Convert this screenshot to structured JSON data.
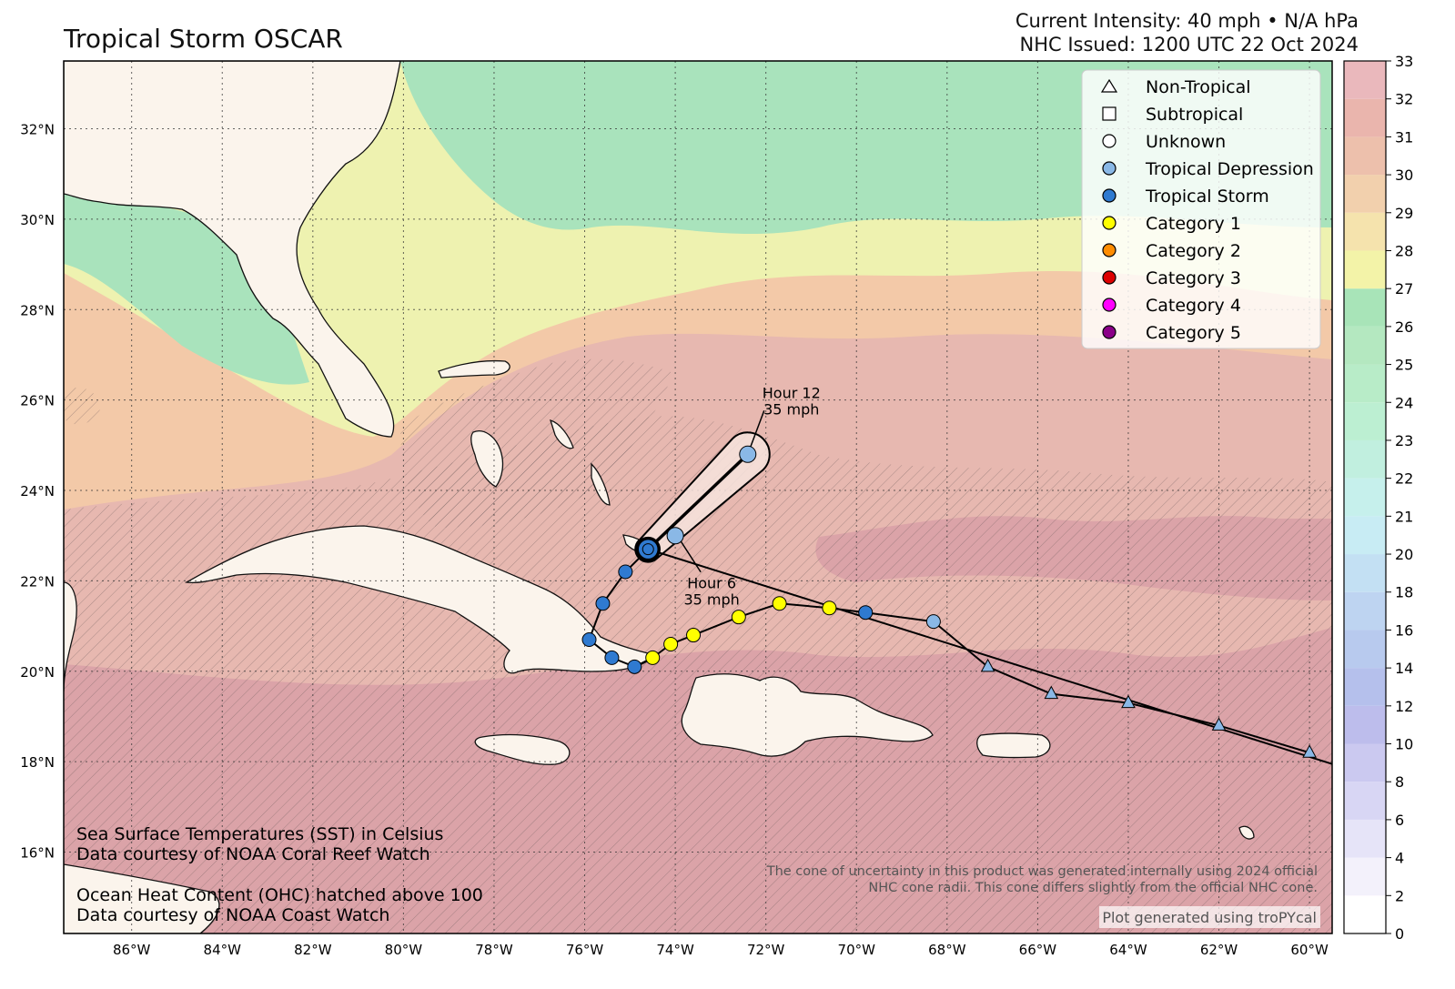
{
  "header": {
    "title": "Tropical Storm OSCAR",
    "intensity": "Current Intensity: 40 mph • N/A hPa",
    "issued": "NHC Issued: 1200 UTC 22 Oct 2024"
  },
  "map": {
    "lon_range": [
      -87.5,
      -59.5
    ],
    "lat_range": [
      14.2,
      33.5
    ],
    "lon_ticks": [
      "86°W",
      "84°W",
      "82°W",
      "80°W",
      "78°W",
      "76°W",
      "74°W",
      "72°W",
      "70°W",
      "68°W",
      "66°W",
      "64°W",
      "62°W",
      "60°W"
    ],
    "lat_ticks": [
      "32°N",
      "30°N",
      "28°N",
      "26°N",
      "24°N",
      "22°N",
      "20°N",
      "18°N",
      "16°N"
    ],
    "colors": {
      "land": "#fbf4ec",
      "sst_warm": "#e7b8b0",
      "sst_hot": "#dba3a8",
      "sst_mid": "#f3c9a8",
      "sst_cool": "#eef2b0",
      "sst_cold": "#a9e3bc",
      "track": "#000000"
    }
  },
  "legend": {
    "items": [
      {
        "label": "Non-Tropical",
        "marker": "triangle",
        "color": "#ffffff"
      },
      {
        "label": "Subtropical",
        "marker": "square",
        "color": "#ffffff"
      },
      {
        "label": "Unknown",
        "marker": "circle",
        "color": "#ffffff"
      },
      {
        "label": "Tropical Depression",
        "marker": "circle",
        "color": "#8ab8e6"
      },
      {
        "label": "Tropical Storm",
        "marker": "circle",
        "color": "#2f7ad0"
      },
      {
        "label": "Category 1",
        "marker": "circle",
        "color": "#ffff00"
      },
      {
        "label": "Category 2",
        "marker": "circle",
        "color": "#ff8c00"
      },
      {
        "label": "Category 3",
        "marker": "circle",
        "color": "#dd0000"
      },
      {
        "label": "Category 4",
        "marker": "circle",
        "color": "#ff00ff"
      },
      {
        "label": "Category 5",
        "marker": "circle",
        "color": "#8b0088"
      }
    ]
  },
  "track": {
    "past": [
      {
        "lon": -60.0,
        "lat": 18.2,
        "type": "Non-Tropical"
      },
      {
        "lon": -62.0,
        "lat": 18.8,
        "type": "Non-Tropical"
      },
      {
        "lon": -64.0,
        "lat": 19.3,
        "type": "Non-Tropical"
      },
      {
        "lon": -65.7,
        "lat": 19.5,
        "type": "Non-Tropical"
      },
      {
        "lon": -67.1,
        "lat": 20.1,
        "type": "Non-Tropical"
      },
      {
        "lon": -68.3,
        "lat": 21.1,
        "type": "Tropical Depression"
      },
      {
        "lon": -69.8,
        "lat": 21.3,
        "type": "Tropical Storm"
      },
      {
        "lon": -70.6,
        "lat": 21.4,
        "type": "Category 1"
      },
      {
        "lon": -71.7,
        "lat": 21.5,
        "type": "Category 1"
      },
      {
        "lon": -72.6,
        "lat": 21.2,
        "type": "Category 1"
      },
      {
        "lon": -73.6,
        "lat": 20.8,
        "type": "Category 1"
      },
      {
        "lon": -74.1,
        "lat": 20.6,
        "type": "Category 1"
      },
      {
        "lon": -74.5,
        "lat": 20.3,
        "type": "Category 1"
      },
      {
        "lon": -74.9,
        "lat": 20.1,
        "type": "Tropical Storm"
      },
      {
        "lon": -75.4,
        "lat": 20.3,
        "type": "Tropical Storm"
      },
      {
        "lon": -75.9,
        "lat": 20.7,
        "type": "Tropical Storm"
      },
      {
        "lon": -75.6,
        "lat": 21.5,
        "type": "Tropical Storm"
      },
      {
        "lon": -75.1,
        "lat": 22.2,
        "type": "Tropical Storm"
      },
      {
        "lon": -74.6,
        "lat": 22.7,
        "type": "Tropical Storm"
      }
    ],
    "current": {
      "lon": -74.6,
      "lat": 22.7
    },
    "forecast": [
      {
        "lon": -74.0,
        "lat": 23.0,
        "label_hour": "Hour 6",
        "label_wind": "35 mph",
        "type": "Tropical Depression"
      },
      {
        "lon": -72.4,
        "lat": 24.8,
        "label_hour": "Hour 12",
        "label_wind": "35 mph",
        "type": "Tropical Depression"
      }
    ]
  },
  "colorbar": {
    "ticks": [
      "0",
      "2",
      "4",
      "6",
      "8",
      "10",
      "12",
      "14",
      "16",
      "18",
      "20",
      "21",
      "22",
      "23",
      "24",
      "25",
      "26",
      "27",
      "28",
      "29",
      "30",
      "31",
      "32",
      "33"
    ],
    "bands": [
      "#ffffff",
      "#f3f1fb",
      "#e6e4f8",
      "#d8d6f4",
      "#cbc9f0",
      "#bdbdec",
      "#b5c0ec",
      "#b8caee",
      "#bed4f1",
      "#c3e0f3",
      "#c8ecf4",
      "#c6f0ec",
      "#c1efdf",
      "#bcefd2",
      "#b8ecc8",
      "#b4e8c0",
      "#a8e4b8",
      "#f3f3a8",
      "#f5e3ad",
      "#f2d0ad",
      "#edc0ac",
      "#eab5ad",
      "#eab8bc",
      "#f3d6ea"
    ]
  },
  "notes": {
    "sst_line1": "Sea Surface Temperatures (SST) in Celsius",
    "sst_line2": "Data courtesy of NOAA Coral Reef Watch",
    "ohc_line1": "Ocean Heat Content (OHC) hatched above 100",
    "ohc_line2": "Data courtesy of NOAA Coast Watch",
    "cone_line1": "The cone of uncertainty in this product was generated internally using 2024 official",
    "cone_line2": "NHC cone radii. This cone differs slightly from the official NHC cone.",
    "credit": "Plot generated using troPYcal"
  }
}
